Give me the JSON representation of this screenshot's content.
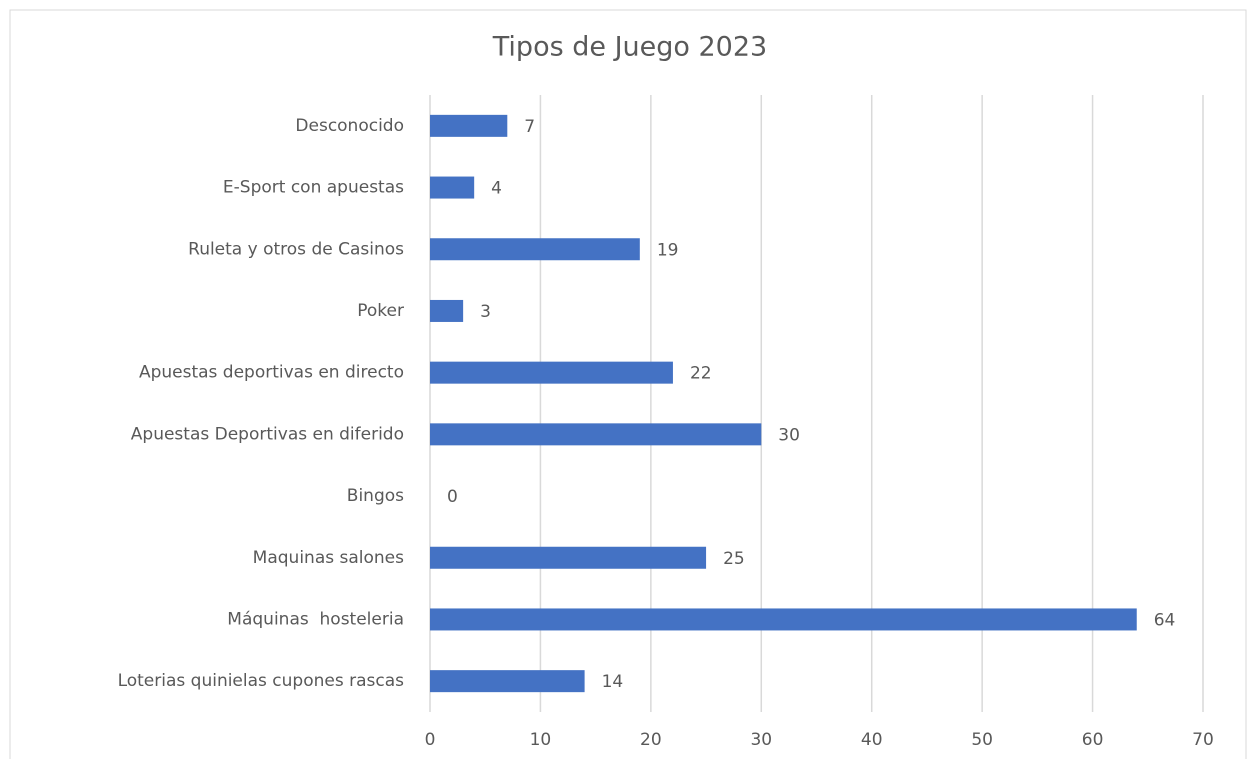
{
  "chart_data": {
    "type": "barh",
    "title": "Tipos de Juego 2023",
    "categories": [
      "Desconocido",
      "E-Sport con apuestas",
      "Ruleta y otros de Casinos",
      "Poker",
      "Apuestas deportivas en directo",
      "Apuestas Deportivas en diferido",
      "Bingos",
      "Maquinas salones",
      "Máquinas  hosteleria",
      "Loterias quinielas cupones rascas"
    ],
    "values": [
      7,
      4,
      19,
      3,
      22,
      30,
      0,
      25,
      64,
      14
    ],
    "color": "#4472c4",
    "xlim": [
      0,
      70
    ],
    "xticks": [
      0,
      10,
      20,
      30,
      40,
      50,
      60,
      70
    ],
    "grid": true
  }
}
